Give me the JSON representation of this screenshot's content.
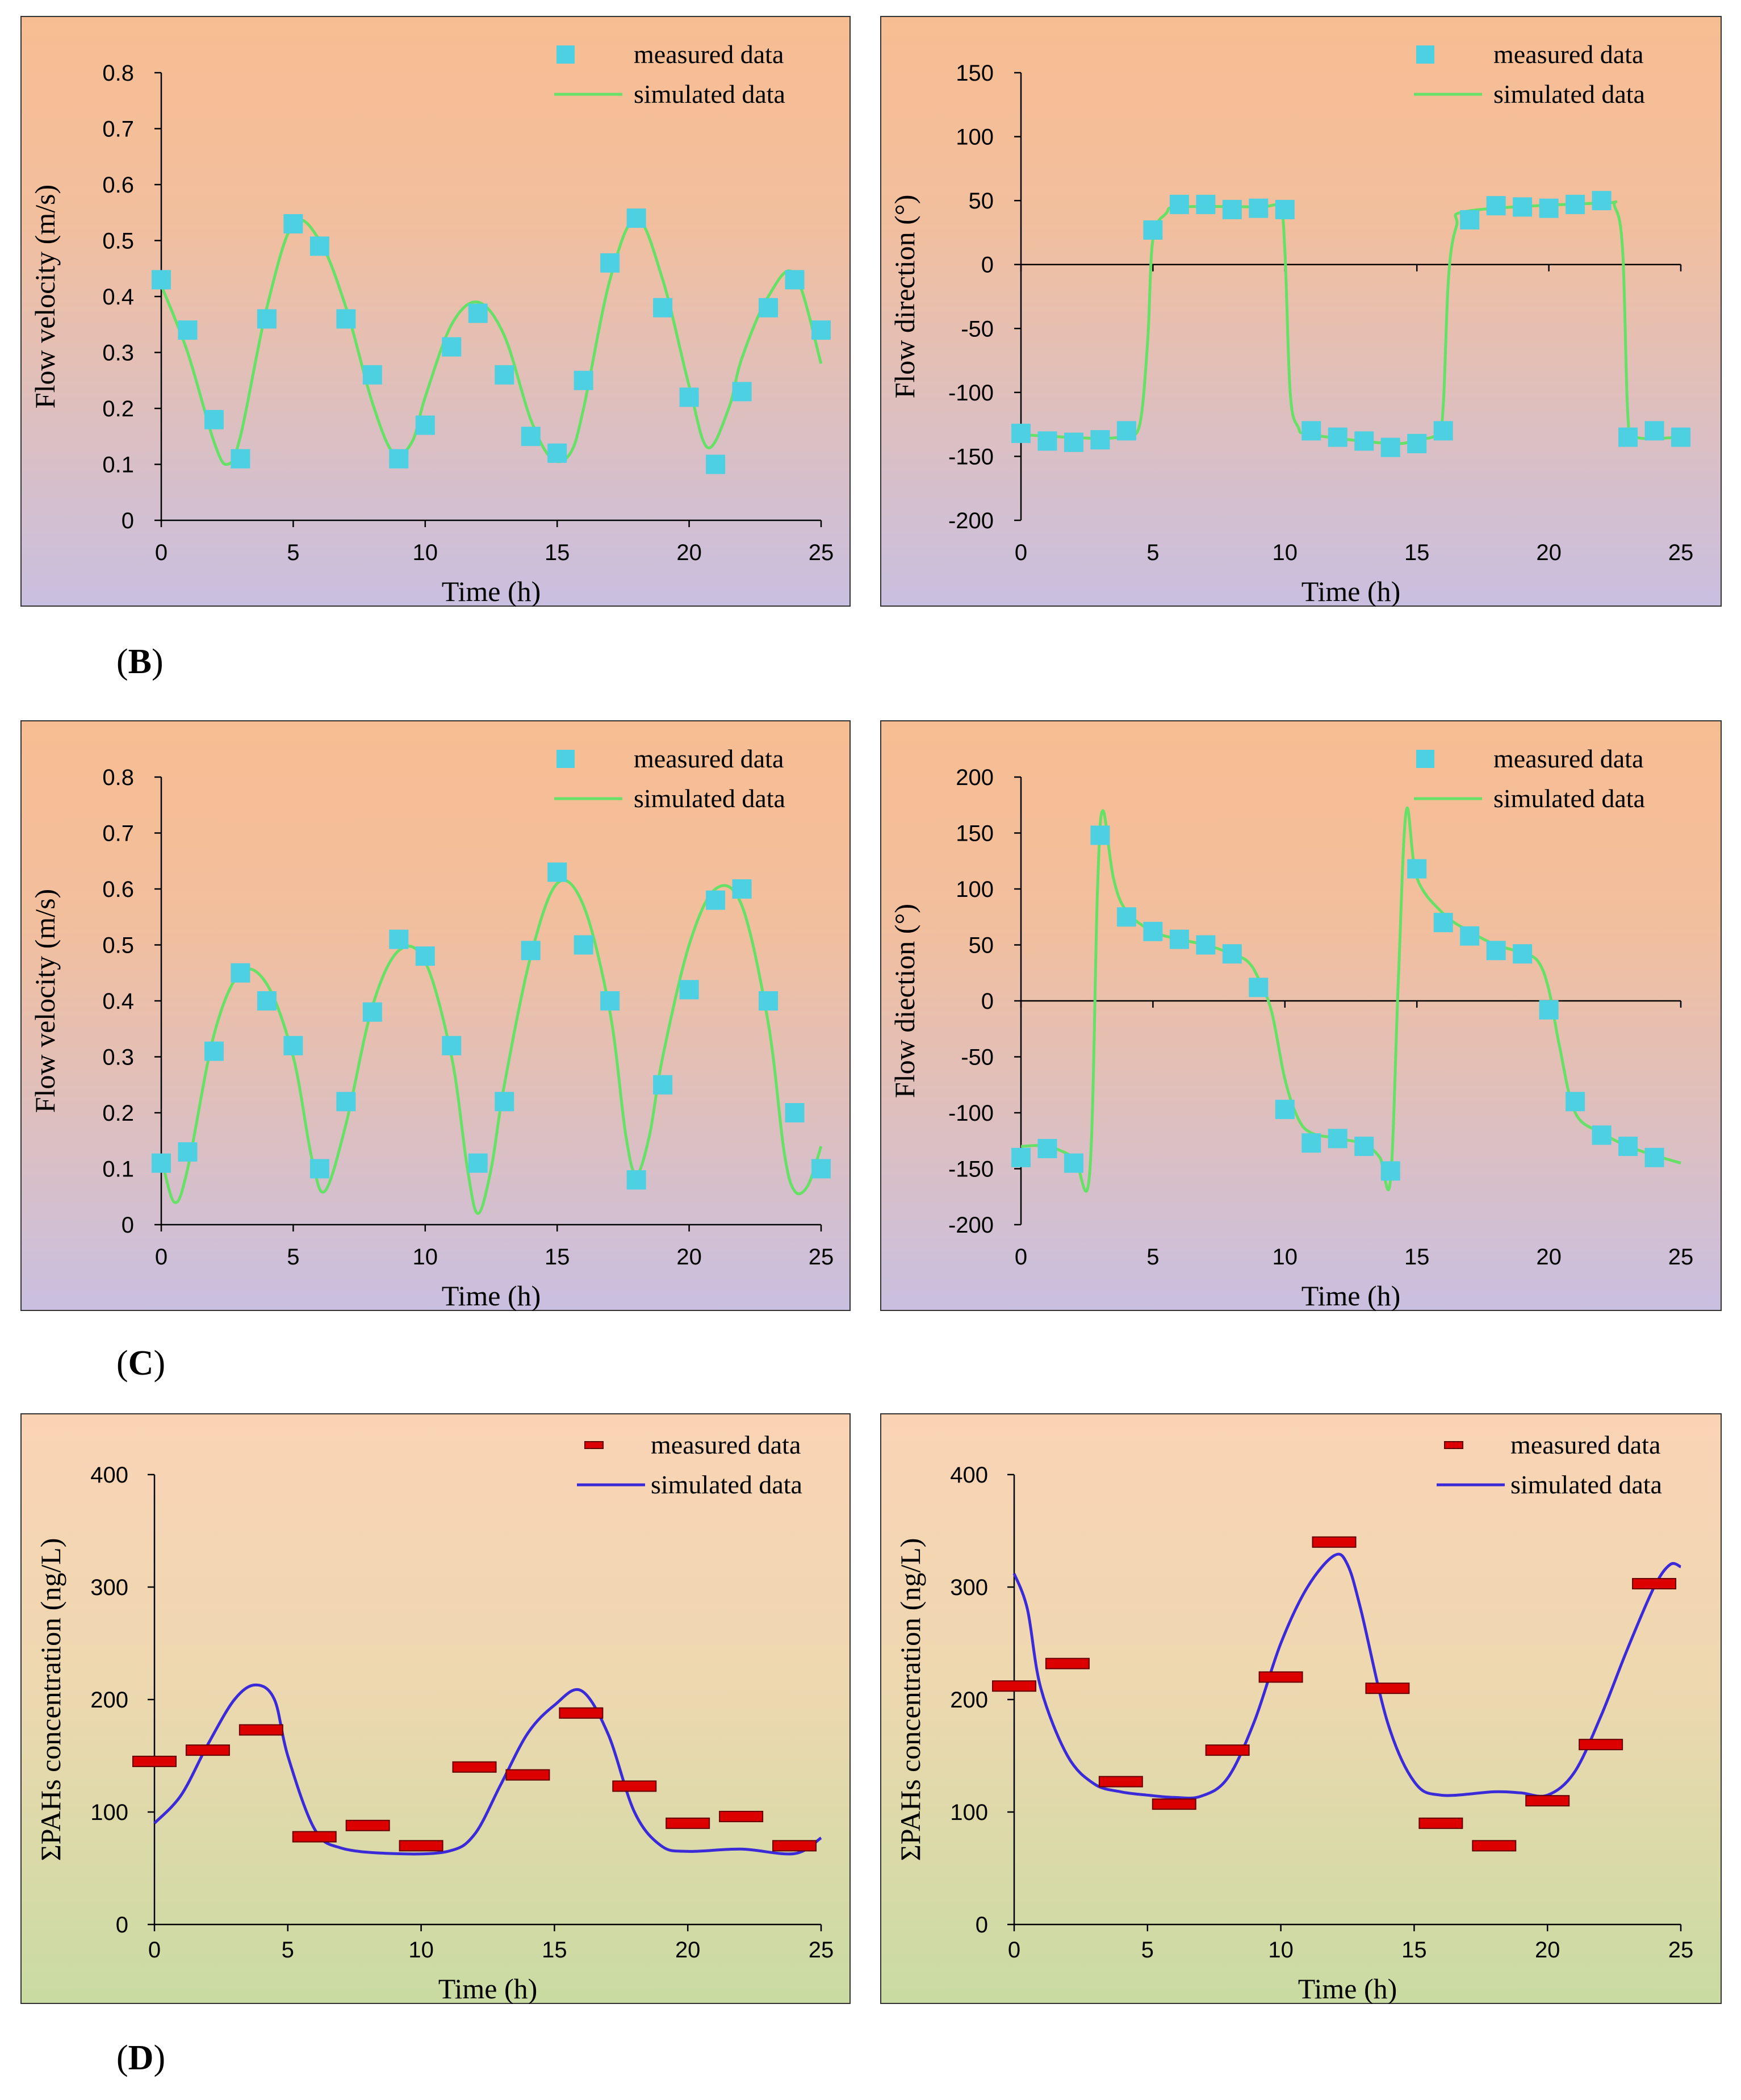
{
  "labels": {
    "B": "B",
    "C": "C",
    "D": "D"
  },
  "legend": {
    "measured": "measured data",
    "simulated": "simulated data"
  },
  "colors": {
    "marker_square": "#4dd0e1",
    "line_green": "#66e066",
    "marker_bar": "#dd0000",
    "line_blue": "#3a2ad8",
    "bg_orange_top": "#f7bd92",
    "bg_purple_bottom": "#c9bfe0",
    "bg_peach_top": "#fad3b5",
    "bg_green_bottom": "#c9dba2"
  },
  "chart_data": [
    {
      "id": "B1",
      "type": "line",
      "bg": "op",
      "xlabel": "Time (h)",
      "ylabel": "Flow velocity (m/s)",
      "xlim": [
        0,
        25
      ],
      "ylim": [
        0,
        0.8
      ],
      "xticks": [
        0,
        5,
        10,
        15,
        20,
        25
      ],
      "xtick_labels": [
        "0",
        "5",
        "10",
        "15",
        "20",
        "25"
      ],
      "yticks": [
        0,
        0.1,
        0.2,
        0.3,
        0.4,
        0.5,
        0.6,
        0.7,
        0.8
      ],
      "ytick_labels": [
        "0",
        "0.1",
        "0.2",
        "0.3",
        "0.4",
        "0.5",
        "0.6",
        "0.7",
        "0.8"
      ],
      "measured": {
        "name": "measured data",
        "marker": "square",
        "x": [
          0,
          1,
          2,
          3,
          4,
          5,
          6,
          7,
          8,
          9,
          10,
          11,
          12,
          13,
          14,
          15,
          16,
          17,
          18,
          19,
          20,
          21,
          22,
          23,
          24,
          25
        ],
        "y": [
          0.43,
          0.34,
          0.18,
          0.11,
          0.36,
          0.53,
          0.49,
          0.36,
          0.26,
          0.11,
          0.17,
          0.31,
          0.37,
          0.26,
          0.15,
          0.12,
          0.25,
          0.46,
          0.54,
          0.38,
          0.22,
          0.1,
          0.23,
          0.38,
          0.43,
          0.34
        ]
      },
      "simulated": {
        "name": "simulated data",
        "color": "green",
        "x": [
          0,
          1,
          2,
          2.5,
          3,
          4,
          5,
          6,
          7,
          8,
          8.8,
          9.5,
          10,
          11,
          12,
          13,
          14,
          14.8,
          15.5,
          16,
          17,
          18,
          19,
          20,
          20.7,
          21.5,
          22,
          23,
          24,
          25
        ],
        "y": [
          0.42,
          0.3,
          0.14,
          0.1,
          0.15,
          0.38,
          0.53,
          0.5,
          0.38,
          0.21,
          0.12,
          0.14,
          0.22,
          0.35,
          0.39,
          0.33,
          0.18,
          0.11,
          0.12,
          0.2,
          0.43,
          0.54,
          0.43,
          0.24,
          0.13,
          0.2,
          0.29,
          0.4,
          0.44,
          0.28
        ]
      }
    },
    {
      "id": "B2",
      "type": "line",
      "bg": "op",
      "xlabel": "Time (h)",
      "ylabel": "Flow direction (°)",
      "xlim": [
        0,
        25
      ],
      "ylim": [
        -200,
        150
      ],
      "xticks": [
        0,
        5,
        10,
        15,
        20,
        25
      ],
      "xtick_labels": [
        "0",
        "5",
        "10",
        "15",
        "20",
        "25"
      ],
      "yticks": [
        -200,
        -150,
        -100,
        -50,
        0,
        50,
        100,
        150
      ],
      "ytick_labels": [
        "-200",
        "-150",
        "-100",
        "-50",
        "0",
        "50",
        "100",
        "150"
      ],
      "measured": {
        "name": "measured data",
        "marker": "square",
        "x": [
          0,
          1,
          2,
          3,
          4,
          5,
          6,
          7,
          8,
          9,
          10,
          11,
          12,
          13,
          14,
          15,
          16,
          17,
          18,
          19,
          20,
          21,
          22,
          23,
          24,
          25
        ],
        "y": [
          -132,
          -138,
          -139,
          -137,
          -130,
          27,
          47,
          47,
          43,
          44,
          43,
          -130,
          -135,
          -138,
          -143,
          -140,
          -130,
          35,
          46,
          45,
          44,
          47,
          50,
          -135,
          -130,
          -135
        ]
      },
      "simulated": {
        "name": "simulated data",
        "color": "green",
        "x": [
          0,
          3,
          4,
          4.5,
          4.8,
          5,
          5.5,
          6,
          9,
          9.8,
          10,
          10.2,
          10.5,
          11,
          14,
          15,
          15.8,
          16,
          16.2,
          16.5,
          17,
          22,
          22.5,
          22.8,
          23,
          23.3,
          25
        ],
        "y": [
          -133,
          -136,
          -133,
          -125,
          -60,
          20,
          40,
          45,
          45,
          44,
          10,
          -100,
          -127,
          -133,
          -140,
          -137,
          -132,
          -110,
          -10,
          30,
          42,
          48,
          45,
          10,
          -120,
          -135,
          -135
        ]
      }
    },
    {
      "id": "C1",
      "type": "line",
      "bg": "op",
      "xlabel": "Time (h)",
      "ylabel": "Flow velocity (m/s)",
      "xlim": [
        0,
        25
      ],
      "ylim": [
        0,
        0.8
      ],
      "xticks": [
        0,
        5,
        10,
        15,
        20,
        25
      ],
      "xtick_labels": [
        "0",
        "5",
        "10",
        "15",
        "20",
        "25"
      ],
      "yticks": [
        0,
        0.1,
        0.2,
        0.3,
        0.4,
        0.5,
        0.6,
        0.7,
        0.8
      ],
      "ytick_labels": [
        "0",
        "0.1",
        "0.2",
        "0.3",
        "0.4",
        "0.5",
        "0.6",
        "0.7",
        "0.8"
      ],
      "measured": {
        "name": "measured data",
        "marker": "square",
        "x": [
          0,
          1,
          2,
          3,
          4,
          5,
          6,
          7,
          8,
          9,
          10,
          11,
          12,
          13,
          14,
          15,
          16,
          17,
          18,
          19,
          20,
          21,
          22,
          23,
          24,
          25
        ],
        "y": [
          0.11,
          0.13,
          0.31,
          0.45,
          0.4,
          0.32,
          0.1,
          0.22,
          0.38,
          0.51,
          0.48,
          0.32,
          0.11,
          0.22,
          0.49,
          0.63,
          0.5,
          0.4,
          0.08,
          0.25,
          0.42,
          0.58,
          0.6,
          0.4,
          0.2,
          0.1
        ]
      },
      "simulated": {
        "name": "simulated data",
        "color": "green",
        "x": [
          0,
          0.5,
          1,
          2,
          3,
          4,
          5,
          5.7,
          6.2,
          7,
          8,
          9,
          10,
          11,
          11.6,
          12,
          12.5,
          13,
          14,
          15,
          16,
          17,
          17.6,
          18,
          18.5,
          19,
          20,
          21,
          22,
          23,
          23.6,
          24,
          24.5,
          25
        ],
        "y": [
          0.12,
          0.04,
          0.1,
          0.34,
          0.45,
          0.43,
          0.3,
          0.12,
          0.06,
          0.18,
          0.39,
          0.49,
          0.47,
          0.3,
          0.1,
          0.02,
          0.1,
          0.25,
          0.48,
          0.61,
          0.57,
          0.38,
          0.16,
          0.09,
          0.16,
          0.3,
          0.5,
          0.6,
          0.57,
          0.36,
          0.13,
          0.06,
          0.07,
          0.14
        ]
      }
    },
    {
      "id": "C2",
      "type": "line",
      "bg": "op",
      "xlabel": "Time (h)",
      "ylabel": "Flow diection (°)",
      "xlim": [
        0,
        25
      ],
      "ylim": [
        -200,
        200
      ],
      "xticks": [
        0,
        5,
        10,
        15,
        20,
        25
      ],
      "xtick_labels": [
        "0",
        "5",
        "10",
        "15",
        "20",
        "25"
      ],
      "yticks": [
        -200,
        -150,
        -100,
        -50,
        0,
        50,
        100,
        150,
        200
      ],
      "ytick_labels": [
        "-200",
        "-150",
        "-100",
        "-50",
        "0",
        "50",
        "100",
        "150",
        "200"
      ],
      "measured": {
        "name": "measured data",
        "marker": "square",
        "x": [
          0,
          1,
          2,
          3,
          4,
          5,
          6,
          7,
          8,
          9,
          10,
          11,
          12,
          13,
          14,
          15,
          16,
          17,
          18,
          19,
          20,
          21,
          22,
          23,
          24
        ],
        "y": [
          -140,
          -132,
          -145,
          148,
          75,
          62,
          55,
          50,
          42,
          12,
          -97,
          -127,
          -123,
          -130,
          -152,
          118,
          70,
          58,
          45,
          42,
          -8,
          -90,
          -120,
          -130,
          -140
        ]
      },
      "simulated": {
        "name": "simulated data",
        "color": "green",
        "x": [
          0,
          1,
          2,
          2.6,
          2.9,
          3.1,
          3.5,
          4,
          5,
          6,
          7,
          8,
          8.6,
          9,
          9.5,
          10,
          10.5,
          11,
          12,
          13,
          13.6,
          14,
          14.3,
          14.6,
          15,
          16,
          17,
          18,
          19,
          19.6,
          20,
          20.4,
          21,
          22,
          23,
          24,
          25
        ],
        "y": [
          -130,
          -130,
          -140,
          -155,
          100,
          170,
          110,
          80,
          62,
          55,
          50,
          42,
          35,
          20,
          -10,
          -70,
          -105,
          -118,
          -123,
          -128,
          -140,
          -160,
          20,
          170,
          110,
          78,
          62,
          50,
          43,
          35,
          10,
          -40,
          -100,
          -118,
          -130,
          -138,
          -145
        ]
      }
    },
    {
      "id": "D1",
      "type": "line",
      "bg": "pg",
      "xlabel": "Time (h)",
      "ylabel": "ΣPAHs concentration (ng/L)",
      "xlim": [
        0,
        25
      ],
      "ylim": [
        0,
        400
      ],
      "xticks": [
        0,
        5,
        10,
        15,
        20,
        25
      ],
      "xtick_labels": [
        "0",
        "5",
        "10",
        "15",
        "20",
        "25"
      ],
      "yticks": [
        0,
        100,
        200,
        300,
        400
      ],
      "ytick_labels": [
        "0",
        "100",
        "200",
        "300",
        "400"
      ],
      "measured": {
        "name": "measured data",
        "marker": "bar",
        "x": [
          0,
          2,
          4,
          6,
          8,
          10,
          12,
          14,
          16,
          18,
          20,
          22,
          24
        ],
        "y": [
          145,
          155,
          173,
          78,
          88,
          70,
          140,
          133,
          188,
          123,
          90,
          96,
          70
        ]
      },
      "simulated": {
        "name": "simulated data",
        "color": "blue",
        "x": [
          0,
          1,
          2,
          3,
          3.8,
          4.5,
          5,
          6,
          7,
          9,
          11,
          12,
          13,
          14,
          15,
          16,
          17,
          18,
          19,
          20,
          22,
          24,
          25
        ],
        "y": [
          90,
          115,
          160,
          200,
          213,
          200,
          150,
          85,
          68,
          63,
          65,
          80,
          125,
          170,
          195,
          208,
          170,
          100,
          70,
          65,
          67,
          63,
          77
        ]
      }
    },
    {
      "id": "D2",
      "type": "line",
      "bg": "pg",
      "xlabel": "Time (h)",
      "ylabel": "ΣPAHs concentration (ng/L)",
      "xlim": [
        0,
        25
      ],
      "ylim": [
        0,
        400
      ],
      "xticks": [
        0,
        5,
        10,
        15,
        20,
        25
      ],
      "xtick_labels": [
        "0",
        "5",
        "10",
        "15",
        "20",
        "25"
      ],
      "yticks": [
        0,
        100,
        200,
        300,
        400
      ],
      "ytick_labels": [
        "0",
        "100",
        "200",
        "300",
        "400"
      ],
      "measured": {
        "name": "measured data",
        "marker": "bar",
        "x": [
          0,
          2,
          4,
          6,
          8,
          10,
          12,
          14,
          16,
          18,
          20,
          22,
          24
        ],
        "y": [
          212,
          232,
          127,
          107,
          155,
          220,
          340,
          210,
          90,
          70,
          110,
          160,
          303
        ]
      },
      "simulated": {
        "name": "simulated data",
        "color": "blue",
        "x": [
          0,
          0.5,
          1,
          2,
          3,
          4,
          5,
          6,
          7,
          8,
          9,
          10,
          11,
          12,
          12.5,
          13,
          14,
          15,
          16,
          18,
          19,
          20,
          21,
          22,
          23,
          24,
          24.6,
          25
        ],
        "y": [
          312,
          280,
          210,
          150,
          125,
          118,
          115,
          113,
          114,
          130,
          180,
          250,
          300,
          328,
          320,
          280,
          180,
          127,
          115,
          118,
          117,
          115,
          135,
          185,
          245,
          300,
          320,
          318
        ]
      }
    }
  ]
}
